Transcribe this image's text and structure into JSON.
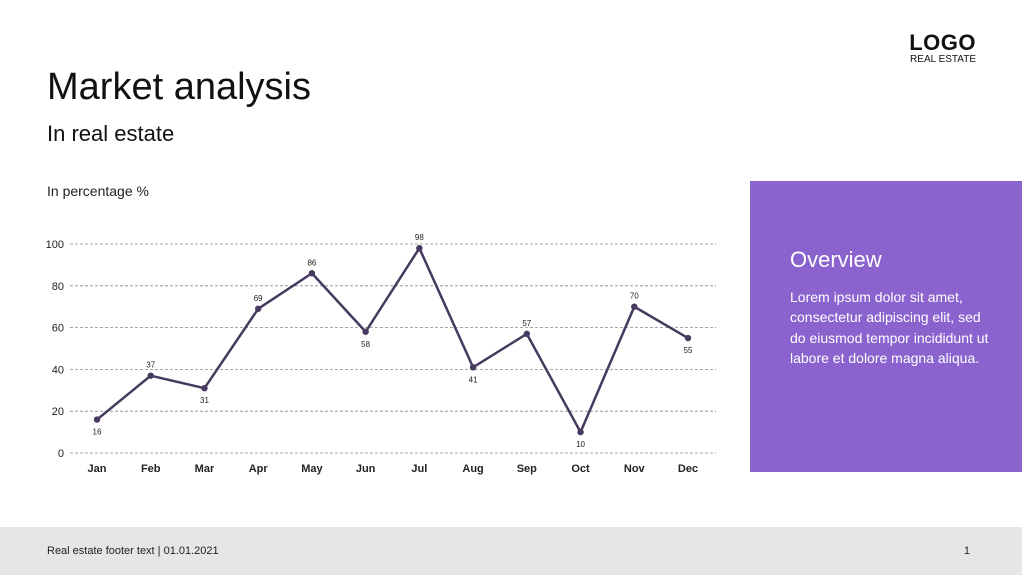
{
  "header": {
    "title": "Market analysis",
    "subtitle": "In real estate"
  },
  "logo": {
    "main": "LOGO",
    "sub": "REAL ESTATE"
  },
  "panel": {
    "heading": "Overview",
    "body": "Lorem ipsum dolor sit amet, consectetur adipiscing elit, sed do eiusmod tempor incididunt ut labore et dolore magna aliqua.",
    "color": "#8a63ce"
  },
  "footer": {
    "text": "Real estate footer text | 01.01.2021",
    "page": "1"
  },
  "chart_data": {
    "type": "line",
    "title": "In percentage %",
    "xlabel": "",
    "ylabel": "",
    "categories": [
      "Jan",
      "Feb",
      "Mar",
      "Apr",
      "May",
      "Jun",
      "Jul",
      "Aug",
      "Sep",
      "Oct",
      "Nov",
      "Dec"
    ],
    "values": [
      16,
      37,
      31,
      69,
      86,
      58,
      98,
      41,
      57,
      10,
      70,
      55
    ],
    "label_position": [
      "below",
      "above",
      "below",
      "above",
      "above",
      "below",
      "above",
      "below",
      "above",
      "below",
      "above",
      "below"
    ],
    "ylim": [
      0,
      100
    ],
    "yticks": [
      0,
      20,
      40,
      60,
      80,
      100
    ],
    "grid": true,
    "line_color": "#463a5e"
  }
}
